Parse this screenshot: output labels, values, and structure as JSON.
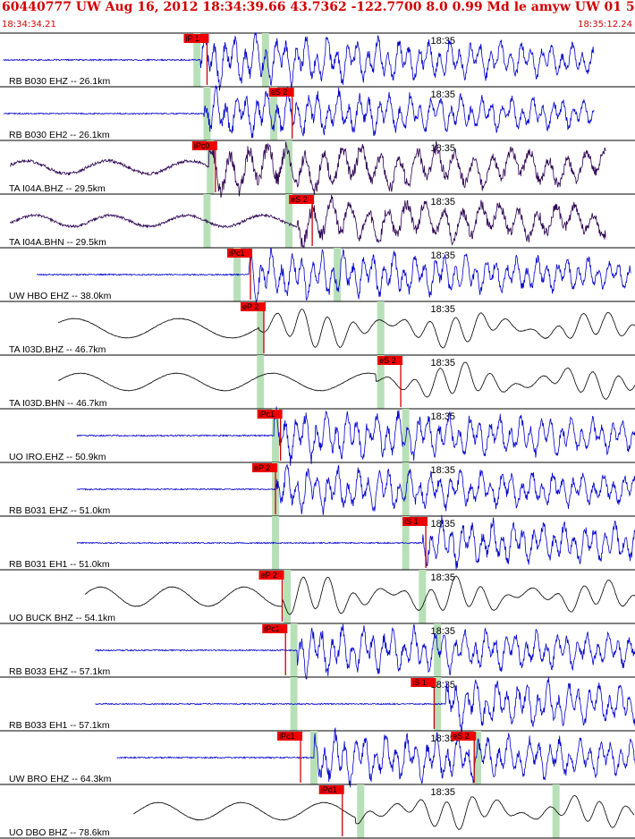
{
  "header": {
    "event_line": "60440777 UW Aug 16, 2012 18:34:39.66   43.7362 -122.7700  8.0 0.99 Md le amyw UW 01   5",
    "start_time": "18:34:34.21",
    "end_time": "18:35:12.24"
  },
  "colors": {
    "header_text": "#d00000",
    "trace_blue": "#0000cc",
    "trace_purple": "#2a0050",
    "trace_black": "#000000",
    "pick_box": "#ee0000",
    "pick_line": "#cc0000",
    "marker_green": "#b8e0b8",
    "divider": "#000000"
  },
  "chart_data": {
    "type": "line",
    "title": "60440777 UW Aug 16, 2012 18:34:39.66   43.7362 -122.7700  8.0 0.99 Md le amyw UW 01   5",
    "x_axis": {
      "start": "18:34:34.21",
      "end": "18:35:12.24",
      "tick_label": "18:35",
      "tick_seconds": 25.79
    },
    "series": [
      {
        "name": "RB B030 EHZ -- 26.1km",
        "color": "blue",
        "style": "hf",
        "amp": 0.42,
        "start_s": 0.2,
        "end_s": 35.6,
        "onset_s": 12.0,
        "p_s": 11.8,
        "s_s": 15.9,
        "picks": [
          {
            "label": "iP 1",
            "t": 12.4
          }
        ]
      },
      {
        "name": "RB B030 EH2 -- 26.1km",
        "color": "blue",
        "style": "hf",
        "amp": 0.4,
        "start_s": 0.2,
        "end_s": 35.6,
        "onset_s": 12.2,
        "p_s": 12.4,
        "s_s": 16.4,
        "picks": [
          {
            "label": "eS 2",
            "t": 17.5
          }
        ]
      },
      {
        "name": "TA I04A.BHZ -- 29.5km",
        "color": "purple",
        "style": "mixed",
        "amp": 0.48,
        "start_s": 0.6,
        "end_s": 36.3,
        "onset_s": 12.5,
        "p_s": 12.6,
        "s_s": 17.3,
        "picks": [
          {
            "label": "iPc0",
            "t": 12.9
          }
        ]
      },
      {
        "name": "TA I04A.BHN -- 29.5km",
        "color": "purple",
        "style": "mixed",
        "amp": 0.42,
        "start_s": 0.6,
        "end_s": 36.3,
        "onset_s": 17.8,
        "p_s": 12.4,
        "s_s": 17.3,
        "picks": [
          {
            "label": "eS 2",
            "t": 18.7
          }
        ]
      },
      {
        "name": "UW HBO EHZ -- 38.0km",
        "color": "blue",
        "style": "hf",
        "amp": 0.4,
        "start_s": 2.2,
        "end_s": 37.8,
        "onset_s": 14.9,
        "p_s": 14.2,
        "s_s": 20.2,
        "picks": [
          {
            "label": "iPc1",
            "t": 15.0
          }
        ]
      },
      {
        "name": "TA I03D.BHZ -- 46.7km",
        "color": "black",
        "style": "lf",
        "amp": 0.4,
        "start_s": 3.5,
        "end_s": 39.3,
        "onset_s": 15.5,
        "p_s": 15.6,
        "s_s": 22.8,
        "picks": [
          {
            "label": "eP 2",
            "t": 15.8
          }
        ]
      },
      {
        "name": "TA I03D.BHN -- 46.7km",
        "color": "black",
        "style": "lf",
        "amp": 0.36,
        "start_s": 3.5,
        "end_s": 39.3,
        "onset_s": 22.5,
        "p_s": 15.6,
        "s_s": 22.8,
        "picks": [
          {
            "label": "eS 2",
            "t": 24.0
          }
        ]
      },
      {
        "name": "UO IRO.EHZ -- 50.9km",
        "color": "blue",
        "style": "hf",
        "amp": 0.42,
        "start_s": 4.6,
        "end_s": 40.4,
        "onset_s": 16.4,
        "p_s": 16.5,
        "s_s": 24.3,
        "picks": [
          {
            "label": "iPc1",
            "t": 16.8
          }
        ]
      },
      {
        "name": "RB B031 EHZ -- 51.0km",
        "color": "blue",
        "style": "hf",
        "amp": 0.38,
        "start_s": 4.6,
        "end_s": 40.4,
        "onset_s": 16.5,
        "p_s": 16.5,
        "s_s": 24.3,
        "picks": [
          {
            "label": "eP 2",
            "t": 16.5
          }
        ]
      },
      {
        "name": "RB B031 EH1 -- 51.0km",
        "color": "blue",
        "style": "hf",
        "amp": 0.38,
        "start_s": 4.6,
        "end_s": 40.4,
        "onset_s": 25.3,
        "p_s": 16.5,
        "s_s": 24.3,
        "picks": [
          {
            "label": "iS 1",
            "t": 25.5
          }
        ]
      },
      {
        "name": "UO BUCK BHZ -- 54.1km",
        "color": "black",
        "style": "lf",
        "amp": 0.4,
        "start_s": 5.1,
        "end_s": 40.9,
        "onset_s": 16.9,
        "p_s": 17.2,
        "s_s": 25.3,
        "picks": [
          {
            "label": "eP 2",
            "t": 16.9
          }
        ]
      },
      {
        "name": "RB B033 EHZ -- 57.1km",
        "color": "blue",
        "style": "hf",
        "amp": 0.4,
        "start_s": 5.7,
        "end_s": 41.4,
        "onset_s": 17.8,
        "p_s": 17.6,
        "s_s": 26.2,
        "picks": [
          {
            "label": "iPc1",
            "t": 17.1
          }
        ]
      },
      {
        "name": "RB B033 EH1 -- 57.1km",
        "color": "blue",
        "style": "hf",
        "amp": 0.4,
        "start_s": 5.7,
        "end_s": 41.4,
        "onset_s": 26.7,
        "p_s": 17.6,
        "s_s": 26.2,
        "picks": [
          {
            "label": "iS 1",
            "t": 26.0
          }
        ]
      },
      {
        "name": "UW BRO EHZ -- 64.3km",
        "color": "blue",
        "style": "hf",
        "amp": 0.42,
        "start_s": 7.0,
        "end_s": 42.6,
        "onset_s": 18.8,
        "p_s": 18.8,
        "s_s": 28.6,
        "picks": [
          {
            "label": "iPc1",
            "t": 18.0
          },
          {
            "label": "eS 2",
            "t": 28.4
          }
        ]
      },
      {
        "name": "UO DBO BHZ -- 78.6km",
        "color": "black",
        "style": "lf",
        "amp": 0.36,
        "start_s": 8.0,
        "end_s": 38.0,
        "onset_s": 21.3,
        "p_s": 21.6,
        "s_s": 33.3,
        "picks": [
          {
            "label": "iPd1",
            "t": 20.5
          }
        ]
      }
    ]
  }
}
